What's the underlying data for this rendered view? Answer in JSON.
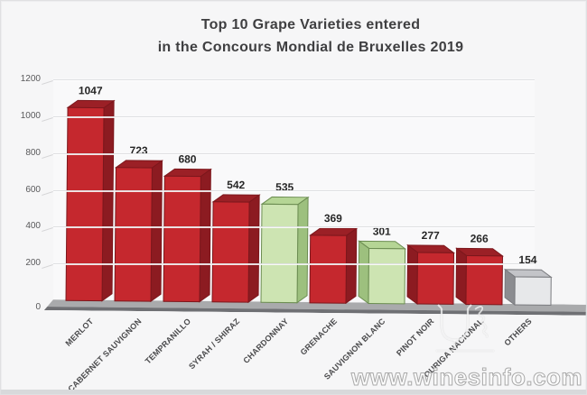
{
  "title": {
    "line1": "Top 10 Grape Varieties entered",
    "line2": "in the Concours Mondial de Bruxelles 2019"
  },
  "watermark": {
    "text": "www.winesinfo.com",
    "logo": "wine-glass-watermark"
  },
  "chart_data": {
    "type": "bar",
    "style": "3d-column",
    "title": "Top 10 Grape Varieties entered in the Concours Mondial de Bruxelles 2019",
    "categories": [
      "MERLOT",
      "CABERNET SAUVIGNON",
      "TEMPRANILLO",
      "SYRAH / SHIRAZ",
      "CHARDONNAY",
      "GRENACHE",
      "SAUVIGNON BLANC",
      "PINOT NOIR",
      "TOURIGA NACIONAL",
      "OTHERS"
    ],
    "values": [
      1047,
      723,
      680,
      542,
      535,
      369,
      301,
      277,
      266,
      154
    ],
    "colors": [
      "red",
      "red",
      "red",
      "red",
      "green",
      "red",
      "green",
      "red",
      "red",
      "gray"
    ],
    "ylim": [
      0,
      1200
    ],
    "yticks": [
      0,
      200,
      400,
      600,
      800,
      1000,
      1200
    ],
    "grid": true,
    "legend": false,
    "xlabel": "",
    "ylabel": "",
    "palette": {
      "red": {
        "front": "#c5282e",
        "top": "#9b2026",
        "side": "#8c1b21",
        "outline": "#7c171c"
      },
      "green": {
        "front": "#cde4b2",
        "top": "#b5d595",
        "side": "#9dc07e",
        "outline": "#6c8d52"
      },
      "gray": {
        "front": "#e7e8ea",
        "top": "#c3c4c8",
        "side": "#8b8c90",
        "outline": "#797a7e"
      }
    },
    "floor_colors": {
      "top": "#a9aaac",
      "edge": "#6f7074"
    },
    "axis_colors": {
      "labels": "#58585a",
      "grid": "#dfe0e2",
      "values": "#262626",
      "categories": "#4b4b4d"
    }
  }
}
